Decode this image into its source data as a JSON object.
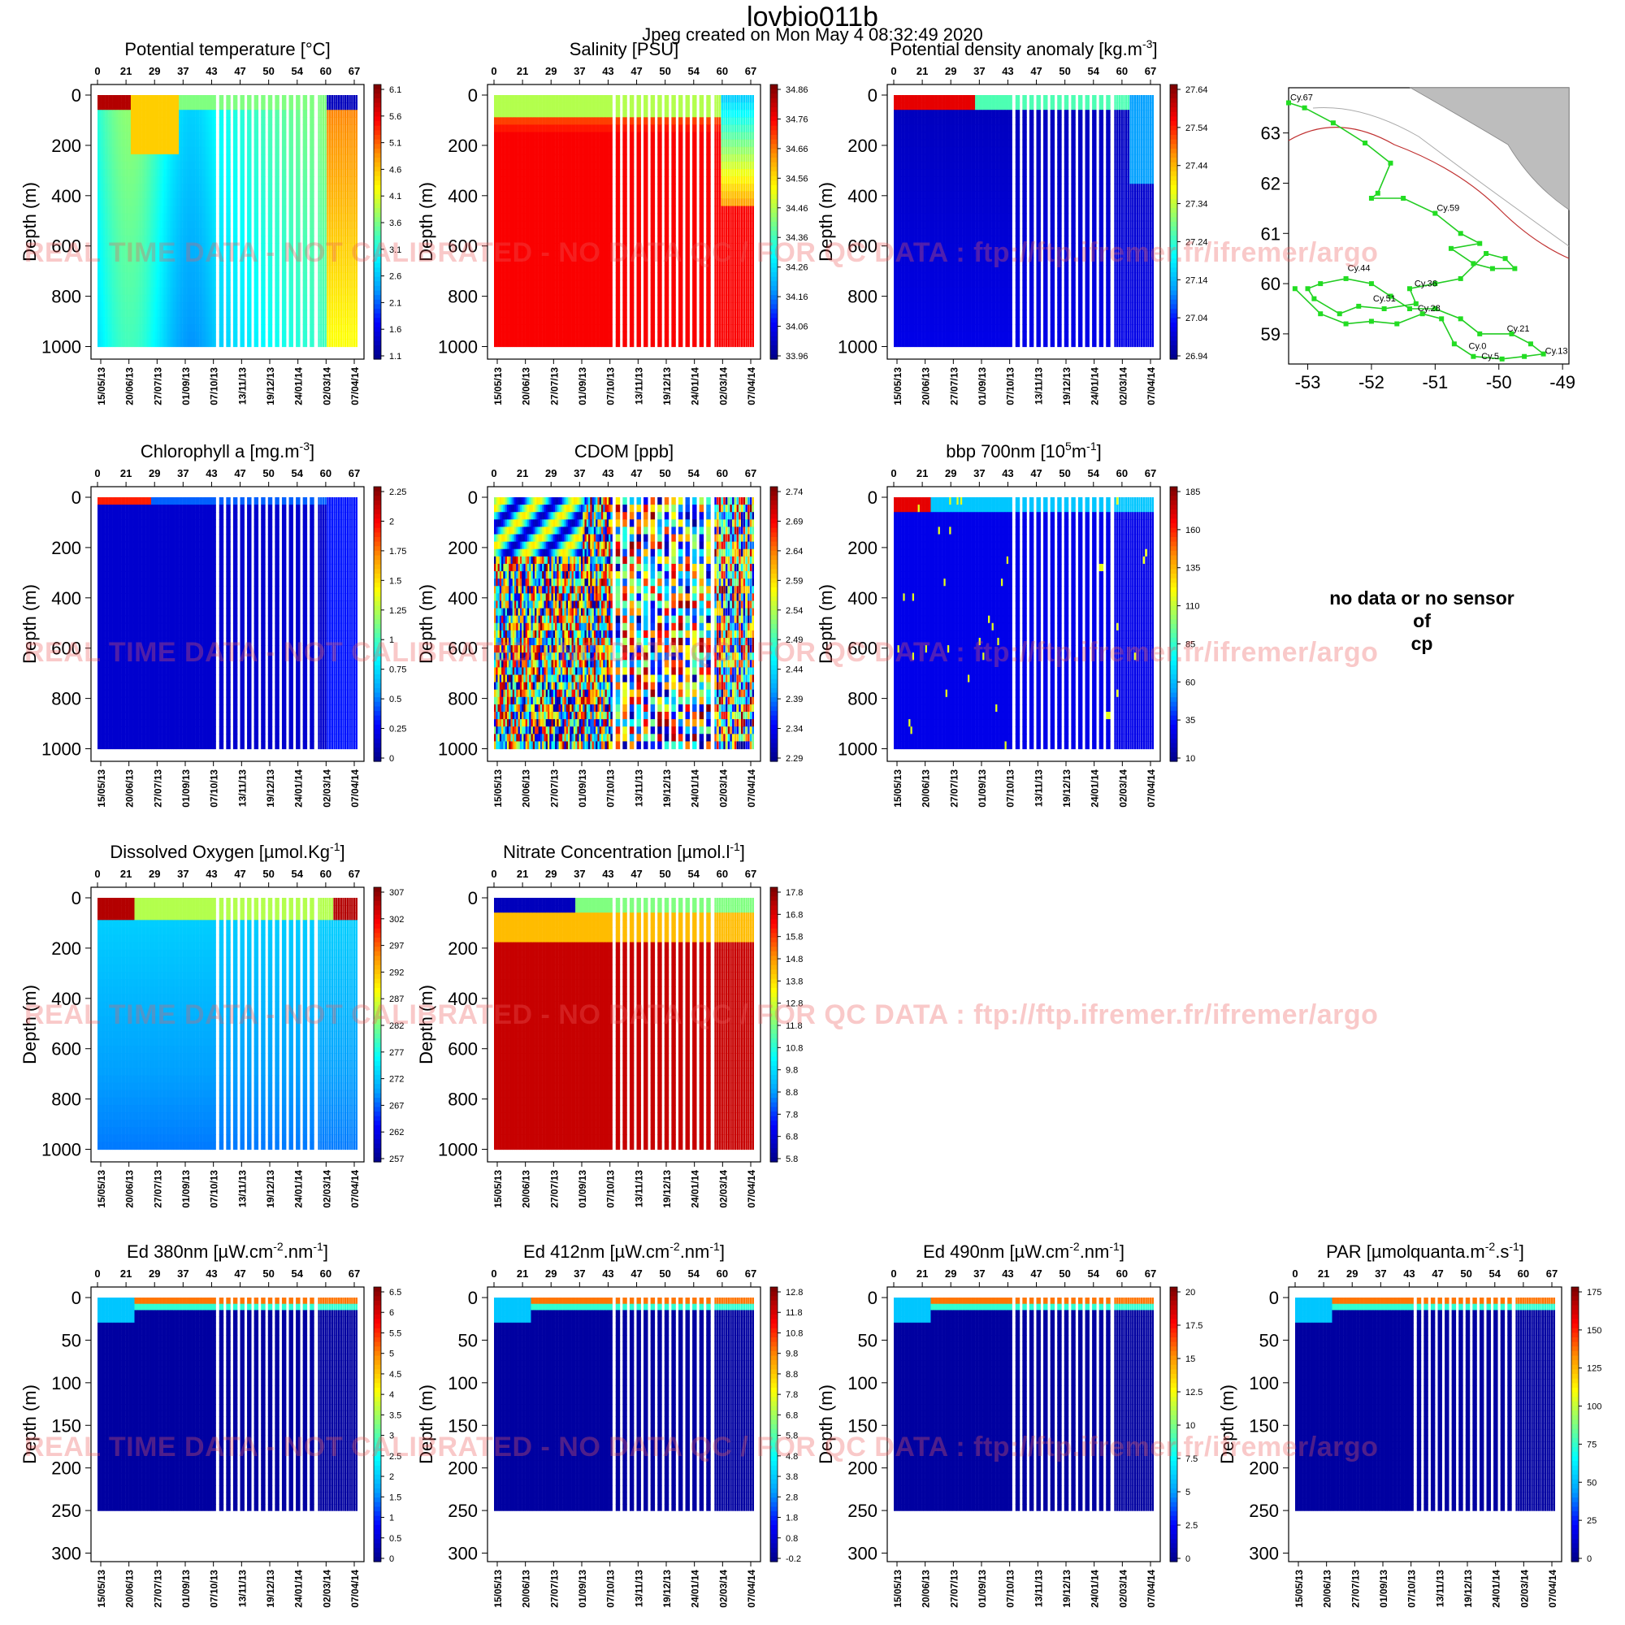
{
  "header": {
    "title": "lovbio011b",
    "subtitle": "Jpeg created on  Mon May  4 08:32:49 2020"
  },
  "watermark": "REAL TIME DATA - NOT CALIBRATED - NO DATA QC / FOR QC DATA : ftp://ftp.ifremer.fr/ifremer/argo",
  "no_data_message": [
    "no data or no sensor",
    "of",
    "cp"
  ],
  "colormap": [
    "#00008f",
    "#0000ff",
    "#00a0ff",
    "#00ffff",
    "#80ff80",
    "#ffff00",
    "#ff9000",
    "#ff0000",
    "#800000"
  ],
  "shared_axes": {
    "top_cycle_ticks": [
      "0",
      "21",
      "29",
      "37",
      "43",
      "47",
      "50",
      "54",
      "60",
      "67"
    ],
    "bottom_date_ticks": [
      "15/05/13",
      "20/06/13",
      "27/07/13",
      "01/09/13",
      "07/10/13",
      "13/11/13",
      "19/12/13",
      "24/01/14",
      "02/03/14",
      "07/04/14"
    ],
    "ylabel": "Depth (m)",
    "deep_yticks": [
      "0",
      "200",
      "400",
      "600",
      "800",
      "1000"
    ],
    "shallow_yticks": [
      "0",
      "50",
      "100",
      "150",
      "200",
      "250",
      "300"
    ]
  },
  "chart_data": [
    {
      "type": "heatmap",
      "id": "temp",
      "title": "Potential temperature [°C]",
      "ylim": [
        0,
        1050
      ],
      "max_depth": 1000,
      "colorbar_labels": [
        "6.1",
        "5.6",
        "5.1",
        "4.6",
        "4.1",
        "3.6",
        "3.1",
        "2.6",
        "2.1",
        "1.6",
        "1.1"
      ],
      "color_range": [
        1.1,
        6.1
      ]
    },
    {
      "type": "heatmap",
      "id": "sal",
      "title": "Salinity [PSU]",
      "ylim": [
        0,
        1050
      ],
      "max_depth": 1000,
      "colorbar_labels": [
        "34.86",
        "34.76",
        "34.66",
        "34.56",
        "34.46",
        "34.36",
        "34.26",
        "34.16",
        "34.06",
        "33.96"
      ],
      "color_range": [
        33.96,
        34.86
      ]
    },
    {
      "type": "heatmap",
      "id": "dens",
      "title": "Potential density anomaly [kg.m^-3]",
      "ylim": [
        0,
        1050
      ],
      "max_depth": 1000,
      "colorbar_labels": [
        "27.64",
        "27.54",
        "27.44",
        "27.34",
        "27.24",
        "27.14",
        "27.04",
        "26.94"
      ],
      "color_range": [
        26.94,
        27.64
      ]
    },
    {
      "type": "scatter",
      "id": "map",
      "xlim": [
        -53.3,
        -48.9
      ],
      "ylim": [
        58.4,
        63.9
      ],
      "xticks": [
        "-53",
        "-52",
        "-51",
        "-50",
        "-49"
      ],
      "yticks": [
        "63",
        "62",
        "61",
        "60",
        "59"
      ],
      "track": [
        [
          -53.3,
          63.6
        ],
        [
          -53.05,
          63.5
        ],
        [
          -52.6,
          63.2
        ],
        [
          -52.1,
          62.8
        ],
        [
          -51.7,
          62.4
        ],
        [
          -51.9,
          61.8
        ],
        [
          -52.0,
          61.7
        ],
        [
          -51.5,
          61.7
        ],
        [
          -51.0,
          61.4
        ],
        [
          -50.6,
          61.0
        ],
        [
          -50.3,
          60.8
        ],
        [
          -50.75,
          60.7
        ],
        [
          -50.4,
          60.4
        ],
        [
          -50.1,
          60.3
        ],
        [
          -49.75,
          60.3
        ],
        [
          -49.9,
          60.5
        ],
        [
          -50.2,
          60.6
        ],
        [
          -50.6,
          60.1
        ],
        [
          -51.0,
          60.0
        ],
        [
          -51.4,
          59.9
        ],
        [
          -51.3,
          59.6
        ],
        [
          -51.8,
          59.5
        ],
        [
          -52.2,
          59.55
        ],
        [
          -52.5,
          59.4
        ],
        [
          -52.9,
          59.7
        ],
        [
          -53.0,
          59.9
        ],
        [
          -52.8,
          60.0
        ],
        [
          -52.4,
          60.1
        ],
        [
          -52.0,
          60.0
        ],
        [
          -51.7,
          59.75
        ],
        [
          -51.4,
          59.5
        ],
        [
          -51.0,
          59.5
        ],
        [
          -50.6,
          59.3
        ],
        [
          -50.3,
          59.0
        ],
        [
          -49.8,
          59.0
        ],
        [
          -49.5,
          58.8
        ],
        [
          -49.3,
          58.6
        ],
        [
          -49.6,
          58.55
        ],
        [
          -49.95,
          58.5
        ],
        [
          -50.4,
          58.55
        ],
        [
          -50.7,
          58.8
        ],
        [
          -50.9,
          59.3
        ],
        [
          -51.2,
          59.4
        ],
        [
          -51.6,
          59.2
        ],
        [
          -52.0,
          59.25
        ],
        [
          -52.4,
          59.2
        ],
        [
          -52.8,
          59.4
        ],
        [
          -53.2,
          59.9
        ]
      ],
      "cycle_labels": [
        {
          "text": "Cy.67",
          "lon": -53.3,
          "lat": 63.6
        },
        {
          "text": "Cy.59",
          "lon": -51.0,
          "lat": 61.4
        },
        {
          "text": "Cy.44",
          "lon": -52.4,
          "lat": 60.2
        },
        {
          "text": "Cy.36",
          "lon": -51.35,
          "lat": 59.9
        },
        {
          "text": "Cy.51",
          "lon": -52.0,
          "lat": 59.6
        },
        {
          "text": "Cy.28",
          "lon": -51.3,
          "lat": 59.4
        },
        {
          "text": "Cy.21",
          "lon": -49.9,
          "lat": 59.0
        },
        {
          "text": "Cy.0",
          "lon": -50.5,
          "lat": 58.65
        },
        {
          "text": "Cy.5",
          "lon": -50.3,
          "lat": 58.45
        },
        {
          "text": "Cy.13",
          "lon": -49.3,
          "lat": 58.55
        }
      ]
    },
    {
      "type": "heatmap",
      "id": "chla",
      "title": "Chlorophyll a [mg.m^-3]",
      "ylim": [
        0,
        1050
      ],
      "max_depth": 1000,
      "colorbar_labels": [
        "2.25",
        "2",
        "1.75",
        "1.5",
        "1.25",
        "1",
        "0.75",
        "0.5",
        "0.25",
        "0"
      ],
      "color_range": [
        0,
        2.25
      ]
    },
    {
      "type": "heatmap",
      "id": "cdom",
      "title": "CDOM  [ppb]",
      "ylim": [
        0,
        1050
      ],
      "max_depth": 1000,
      "colorbar_labels": [
        "2.74",
        "2.69",
        "2.64",
        "2.59",
        "2.54",
        "2.49",
        "2.44",
        "2.39",
        "2.34",
        "2.29"
      ],
      "color_range": [
        2.29,
        2.74
      ]
    },
    {
      "type": "heatmap",
      "id": "bbp",
      "title": "bbp 700nm [10^5m^-1]",
      "ylim": [
        0,
        1050
      ],
      "max_depth": 1000,
      "colorbar_labels": [
        "185",
        "160",
        "135",
        "110",
        "85",
        "60",
        "35",
        "10"
      ],
      "color_range": [
        10,
        185
      ]
    },
    {
      "type": "heatmap",
      "id": "oxy",
      "title": "Dissolved Oxygen [µmol.Kg^-1]",
      "ylim": [
        0,
        1050
      ],
      "max_depth": 1000,
      "colorbar_labels": [
        "307",
        "302",
        "297",
        "292",
        "287",
        "282",
        "277",
        "272",
        "267",
        "262",
        "257"
      ],
      "color_range": [
        257,
        307
      ]
    },
    {
      "type": "heatmap",
      "id": "nitrate",
      "title": "Nitrate Concentration [µmol.l^-1]",
      "ylim": [
        0,
        1050
      ],
      "max_depth": 1000,
      "colorbar_labels": [
        "17.8",
        "16.8",
        "15.8",
        "14.8",
        "13.8",
        "12.8",
        "11.8",
        "10.8",
        "9.8",
        "8.8",
        "7.8",
        "6.8",
        "5.8"
      ],
      "color_range": [
        5.8,
        17.8
      ]
    },
    {
      "type": "heatmap",
      "id": "ed380",
      "title": "Ed 380nm [µW.cm^-2.nm^-1]",
      "ylim": [
        0,
        310
      ],
      "max_depth": 250,
      "colorbar_labels": [
        "6.5",
        "6",
        "5.5",
        "5",
        "4.5",
        "4",
        "3.5",
        "3",
        "2.5",
        "2",
        "1.5",
        "1",
        "0.5",
        "0"
      ],
      "color_range": [
        0,
        6.5
      ]
    },
    {
      "type": "heatmap",
      "id": "ed412",
      "title": "Ed 412nm [µW.cm^-2.nm^-1]",
      "ylim": [
        0,
        310
      ],
      "max_depth": 250,
      "colorbar_labels": [
        "12.8",
        "11.8",
        "10.8",
        "9.8",
        "8.8",
        "7.8",
        "6.8",
        "5.8",
        "4.8",
        "3.8",
        "2.8",
        "1.8",
        "0.8",
        "-0.2"
      ],
      "color_range": [
        -0.2,
        12.8
      ]
    },
    {
      "type": "heatmap",
      "id": "ed490",
      "title": "Ed 490nm [µW.cm^-2.nm^-1]",
      "ylim": [
        0,
        310
      ],
      "max_depth": 250,
      "colorbar_labels": [
        "20",
        "17.5",
        "15",
        "12.5",
        "10",
        "7.5",
        "5",
        "2.5",
        "0"
      ],
      "color_range": [
        0,
        20
      ]
    },
    {
      "type": "heatmap",
      "id": "par",
      "title": "PAR [µmolquanta.m^-2.s^-1]",
      "ylim": [
        0,
        310
      ],
      "max_depth": 250,
      "colorbar_labels": [
        "175",
        "150",
        "125",
        "100",
        "75",
        "50",
        "25",
        "0"
      ],
      "color_range": [
        0,
        175
      ]
    }
  ]
}
